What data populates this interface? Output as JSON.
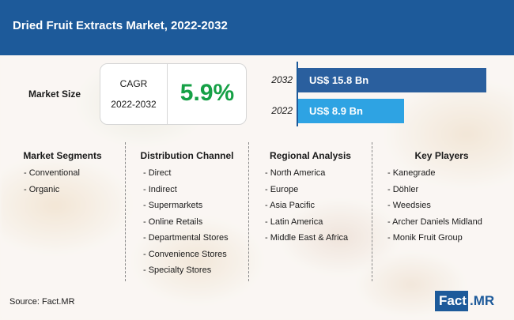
{
  "header": {
    "title": "Dried Fruit Extracts Market, 2022-2032"
  },
  "market_size": {
    "label": "Market Size"
  },
  "cagr": {
    "label": "CAGR",
    "period": "2022-2032",
    "value": "5.9%"
  },
  "colors": {
    "brand": "#1d5a9a",
    "bar_2032": "#2a5f9e",
    "bar_2022": "#2ea3e3",
    "cagr": "#16a046"
  },
  "chart_data": {
    "type": "bar",
    "orientation": "horizontal",
    "categories": [
      "2032",
      "2022"
    ],
    "values": [
      15.8,
      8.9
    ],
    "value_labels": [
      "US$ 15.8 Bn",
      "US$ 8.9 Bn"
    ],
    "title": "",
    "xlabel": "",
    "ylabel": "",
    "xlim": [
      0,
      15.8
    ],
    "grid": false
  },
  "segments": {
    "title": "Market Segments",
    "items": [
      "- Conventional",
      "- Organic"
    ]
  },
  "distribution": {
    "title": "Distribution Channel",
    "items": [
      "- Direct",
      "- Indirect",
      "- Supermarkets",
      "- Online Retails",
      "- Departmental Stores",
      "- Convenience Stores",
      "- Specialty Stores"
    ]
  },
  "regional": {
    "title": "Regional Analysis",
    "items": [
      "- North America",
      "- Europe",
      "- Asia Pacific",
      "- Latin America",
      "- Middle East & Africa"
    ]
  },
  "players": {
    "title": "Key Players",
    "items": [
      "- Kanegrade",
      "- Döhler",
      "- Weedsies",
      "- Archer Daniels Midland",
      "- Monik Fruit Group"
    ]
  },
  "source": "Source: Fact.MR",
  "logo": {
    "part1": "Fact",
    "part2": ".MR"
  }
}
